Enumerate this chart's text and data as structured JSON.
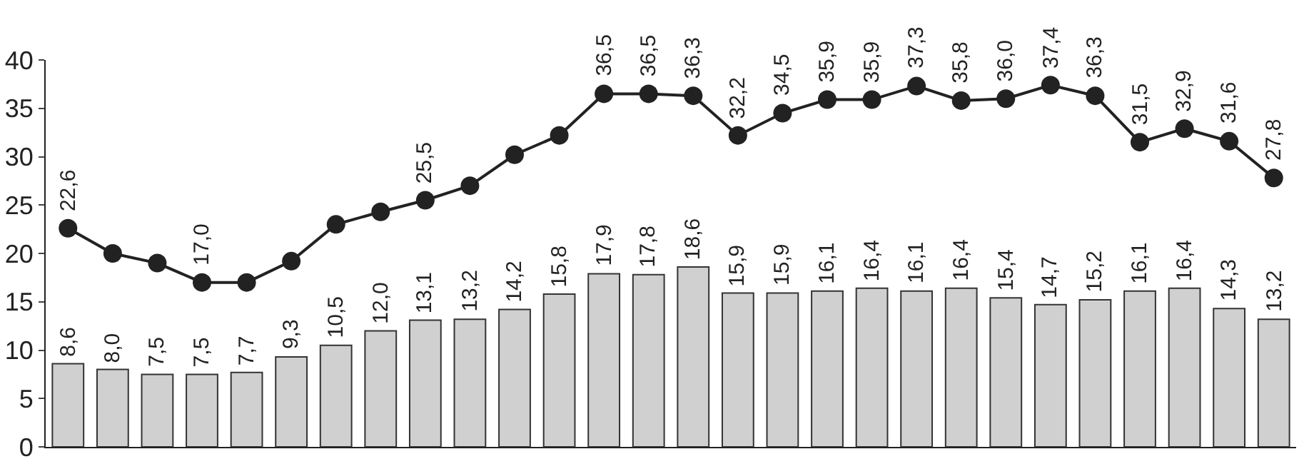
{
  "chart_data": {
    "type": "bar",
    "categories": [
      null,
      null,
      null,
      null,
      null,
      null,
      null,
      null,
      null,
      null,
      null,
      null,
      null,
      null,
      null,
      null,
      null,
      null,
      null,
      null,
      null,
      null,
      null,
      null,
      null,
      null,
      null,
      null
    ],
    "series": [
      {
        "color": "#d0d0d0",
        "values": [
          8.6,
          8.0,
          7.5,
          7.5,
          7.7,
          9.3,
          10.5,
          12.0,
          13.1,
          13.2,
          14.2,
          15.8,
          17.9,
          17.8,
          18.6,
          15.9,
          15.9,
          16.1,
          16.4,
          16.1,
          16.4,
          15.4,
          14.7,
          15.2,
          16.1,
          16.4,
          14.3,
          13.2
        ],
        "value_labels": [
          "8,6",
          "8,0",
          "7,5",
          "7,5",
          "7,7",
          "9,3",
          "10,5",
          "12,0",
          "13,1",
          "13,2",
          "14,2",
          "15,8",
          "17,9",
          "17,8",
          "18,6",
          "15,9",
          "15,9",
          "16,1",
          "16,4",
          "16,1",
          "16,4",
          "15,4",
          "14,7",
          "15,2",
          "16,1",
          "16,4",
          "14,3",
          "13,2"
        ]
      },
      {
        "type": "line",
        "color": "#222222",
        "values": [
          22.6,
          20.0,
          19.0,
          17.0,
          17.0,
          19.2,
          23.0,
          24.3,
          25.5,
          27.0,
          30.2,
          32.2,
          36.5,
          36.5,
          36.3,
          32.2,
          34.5,
          35.9,
          35.9,
          37.3,
          35.8,
          36.0,
          37.4,
          36.3,
          31.5,
          32.9,
          31.6,
          27.8
        ],
        "value_labels": [
          "22,6",
          null,
          null,
          "17,0",
          null,
          null,
          null,
          null,
          "25,5",
          null,
          null,
          null,
          "36,5",
          "36,5",
          "36,3",
          "32,2",
          "34,5",
          "35,9",
          "35,9",
          "37,3",
          "35,8",
          "36,0",
          "37,4",
          "36,3",
          "31,5",
          "32,9",
          "31,6",
          "27,8"
        ]
      }
    ],
    "ylim": [
      0,
      40
    ],
    "yticks": [
      0,
      5,
      10,
      15,
      20,
      25,
      30,
      35,
      40
    ],
    "marker": "circle",
    "line_style": "solid",
    "tick_labels": "y"
  }
}
